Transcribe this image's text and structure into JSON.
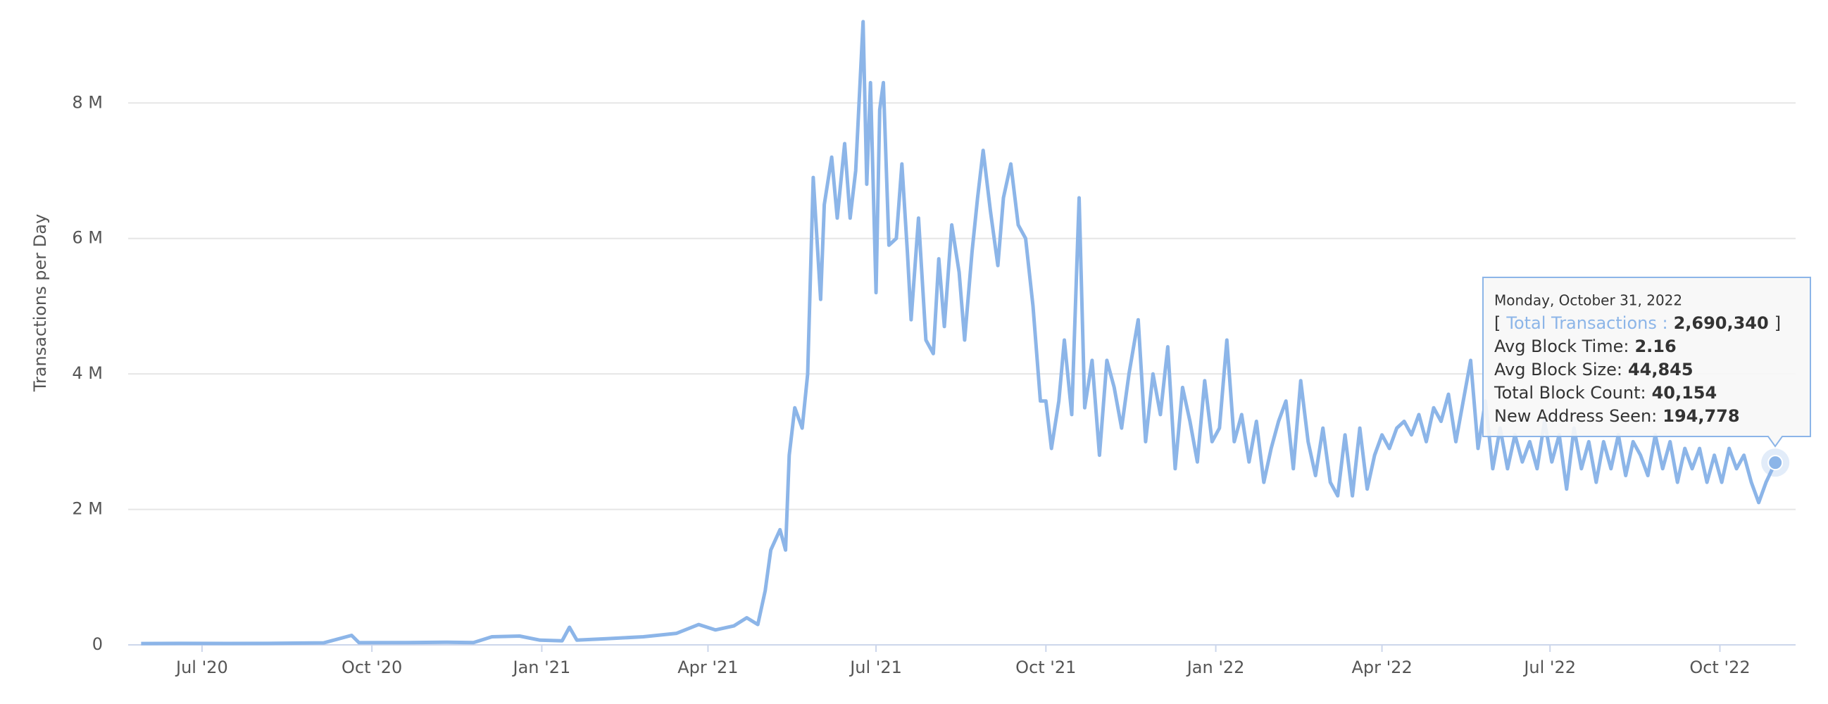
{
  "chart_data": {
    "type": "line",
    "y_label": "Transactions per Day",
    "x": [
      "2020-05-29",
      "2020-06-20",
      "2020-07-15",
      "2020-08-10",
      "2020-09-05",
      "2020-09-20",
      "2020-09-24",
      "2020-10-20",
      "2020-11-10",
      "2020-11-25",
      "2020-12-05",
      "2020-12-20",
      "2020-12-31",
      "2021-01-12",
      "2021-01-16",
      "2021-01-20",
      "2021-02-05",
      "2021-02-25",
      "2021-03-15",
      "2021-03-27",
      "2021-04-05",
      "2021-04-15",
      "2021-04-22",
      "2021-04-28",
      "2021-05-02",
      "2021-05-05",
      "2021-05-10",
      "2021-05-13",
      "2021-05-15",
      "2021-05-18",
      "2021-05-22",
      "2021-05-25",
      "2021-05-28",
      "2021-06-01",
      "2021-06-03",
      "2021-06-07",
      "2021-06-10",
      "2021-06-14",
      "2021-06-17",
      "2021-06-20",
      "2021-06-24",
      "2021-06-26",
      "2021-06-28",
      "2021-07-01",
      "2021-07-03",
      "2021-07-05",
      "2021-07-08",
      "2021-07-12",
      "2021-07-15",
      "2021-07-18",
      "2021-07-20",
      "2021-07-24",
      "2021-07-28",
      "2021-08-01",
      "2021-08-04",
      "2021-08-07",
      "2021-08-11",
      "2021-08-15",
      "2021-08-18",
      "2021-08-22",
      "2021-08-25",
      "2021-08-28",
      "2021-09-01",
      "2021-09-05",
      "2021-09-08",
      "2021-09-12",
      "2021-09-16",
      "2021-09-20",
      "2021-09-24",
      "2021-09-28",
      "2021-10-01",
      "2021-10-04",
      "2021-10-08",
      "2021-10-11",
      "2021-10-15",
      "2021-10-19",
      "2021-10-22",
      "2021-10-26",
      "2021-10-30",
      "2021-11-03",
      "2021-11-07",
      "2021-11-11",
      "2021-11-15",
      "2021-11-20",
      "2021-11-24",
      "2021-11-28",
      "2021-12-02",
      "2021-12-06",
      "2021-12-10",
      "2021-12-14",
      "2021-12-18",
      "2021-12-22",
      "2021-12-26",
      "2021-12-30",
      "2022-01-03",
      "2022-01-07",
      "2022-01-11",
      "2022-01-15",
      "2022-01-19",
      "2022-01-23",
      "2022-01-27",
      "2022-01-31",
      "2022-02-04",
      "2022-02-08",
      "2022-02-12",
      "2022-02-16",
      "2022-02-20",
      "2022-02-24",
      "2022-02-28",
      "2022-03-04",
      "2022-03-08",
      "2022-03-12",
      "2022-03-16",
      "2022-03-20",
      "2022-03-24",
      "2022-03-28",
      "2022-04-01",
      "2022-04-05",
      "2022-04-09",
      "2022-04-13",
      "2022-04-17",
      "2022-04-21",
      "2022-04-25",
      "2022-04-29",
      "2022-05-03",
      "2022-05-07",
      "2022-05-11",
      "2022-05-15",
      "2022-05-19",
      "2022-05-23",
      "2022-05-27",
      "2022-05-31",
      "2022-06-04",
      "2022-06-08",
      "2022-06-12",
      "2022-06-16",
      "2022-06-20",
      "2022-06-24",
      "2022-06-28",
      "2022-07-02",
      "2022-07-06",
      "2022-07-10",
      "2022-07-14",
      "2022-07-18",
      "2022-07-22",
      "2022-07-26",
      "2022-07-30",
      "2022-08-03",
      "2022-08-07",
      "2022-08-11",
      "2022-08-15",
      "2022-08-19",
      "2022-08-23",
      "2022-08-27",
      "2022-08-31",
      "2022-09-04",
      "2022-09-08",
      "2022-09-12",
      "2022-09-16",
      "2022-09-20",
      "2022-09-24",
      "2022-09-28",
      "2022-10-02",
      "2022-10-06",
      "2022-10-10",
      "2022-10-14",
      "2022-10-18",
      "2022-10-22",
      "2022-10-26",
      "2022-10-31"
    ],
    "series": [
      {
        "name": "Total Transactions",
        "color": "#8cb5e8",
        "values": [
          20000,
          22000,
          21000,
          23000,
          30000,
          140000,
          32000,
          33000,
          40000,
          34000,
          120000,
          130000,
          70000,
          60000,
          260000,
          70000,
          90000,
          120000,
          170000,
          300000,
          220000,
          280000,
          400000,
          300000,
          800000,
          1400000,
          1700000,
          1400000,
          2800000,
          3500000,
          3200000,
          4000000,
          6900000,
          5100000,
          6500000,
          7200000,
          6300000,
          7400000,
          6300000,
          7000000,
          9200000,
          6800000,
          8300000,
          5200000,
          7900000,
          8300000,
          5900000,
          6000000,
          7100000,
          5800000,
          4800000,
          6300000,
          4500000,
          4300000,
          5700000,
          4700000,
          6200000,
          5500000,
          4500000,
          5800000,
          6600000,
          7300000,
          6400000,
          5600000,
          6600000,
          7100000,
          6200000,
          6000000,
          5000000,
          3600000,
          3600000,
          2900000,
          3600000,
          4500000,
          3400000,
          6600000,
          3500000,
          4200000,
          2800000,
          4200000,
          3800000,
          3200000,
          4000000,
          4800000,
          3000000,
          4000000,
          3400000,
          4400000,
          2600000,
          3800000,
          3300000,
          2700000,
          3900000,
          3000000,
          3200000,
          4500000,
          3000000,
          3400000,
          2700000,
          3300000,
          2400000,
          2900000,
          3300000,
          3600000,
          2600000,
          3900000,
          3000000,
          2500000,
          3200000,
          2400000,
          2200000,
          3100000,
          2200000,
          3200000,
          2300000,
          2800000,
          3100000,
          2900000,
          3200000,
          3300000,
          3100000,
          3400000,
          3000000,
          3500000,
          3300000,
          3700000,
          3000000,
          3600000,
          4200000,
          2900000,
          3600000,
          2600000,
          3200000,
          2600000,
          3100000,
          2700000,
          3000000,
          2600000,
          3300000,
          2700000,
          3100000,
          2300000,
          3200000,
          2600000,
          3000000,
          2400000,
          3000000,
          2600000,
          3100000,
          2500000,
          3000000,
          2800000,
          2500000,
          3100000,
          2600000,
          3000000,
          2400000,
          2900000,
          2600000,
          2900000,
          2400000,
          2800000,
          2400000,
          2900000,
          2600000,
          2800000,
          2400000,
          2100000,
          2400000,
          2690340
        ]
      }
    ],
    "xlim": [
      "2020-05-22",
      "2022-11-11"
    ],
    "xticks": [
      {
        "value": "2020-07-01",
        "label": "Jul '20"
      },
      {
        "value": "2020-10-01",
        "label": "Oct '20"
      },
      {
        "value": "2021-01-01",
        "label": "Jan '21"
      },
      {
        "value": "2021-04-01",
        "label": "Apr '21"
      },
      {
        "value": "2021-07-01",
        "label": "Jul '21"
      },
      {
        "value": "2021-10-01",
        "label": "Oct '21"
      },
      {
        "value": "2022-01-01",
        "label": "Jan '22"
      },
      {
        "value": "2022-04-01",
        "label": "Apr '22"
      },
      {
        "value": "2022-07-01",
        "label": "Jul '22"
      },
      {
        "value": "2022-10-01",
        "label": "Oct '22"
      }
    ],
    "ylim": [
      0,
      9250000
    ],
    "yticks": [
      0,
      {
        "value": 2000000,
        "label": "2 M"
      },
      {
        "value": 4000000,
        "label": "4 M"
      },
      {
        "value": 6000000,
        "label": "6 M"
      },
      {
        "value": 8000000,
        "label": "8 M"
      }
    ],
    "grid": true,
    "tooltip": {
      "date": "Monday, October 31, 2022",
      "open": "[",
      "series_label": "Total Transactions :",
      "total": {
        "value": 2690340,
        "label": "2,690,340"
      },
      "close": "]",
      "rows": [
        {
          "label": "Avg Block Time:",
          "value": "2.16"
        },
        {
          "label": "Avg Block Size:",
          "value": "44,845"
        },
        {
          "label": "Total Block Count:",
          "value": "40,154"
        },
        {
          "label": "New Address Seen:",
          "value": "194,778"
        }
      ]
    }
  }
}
